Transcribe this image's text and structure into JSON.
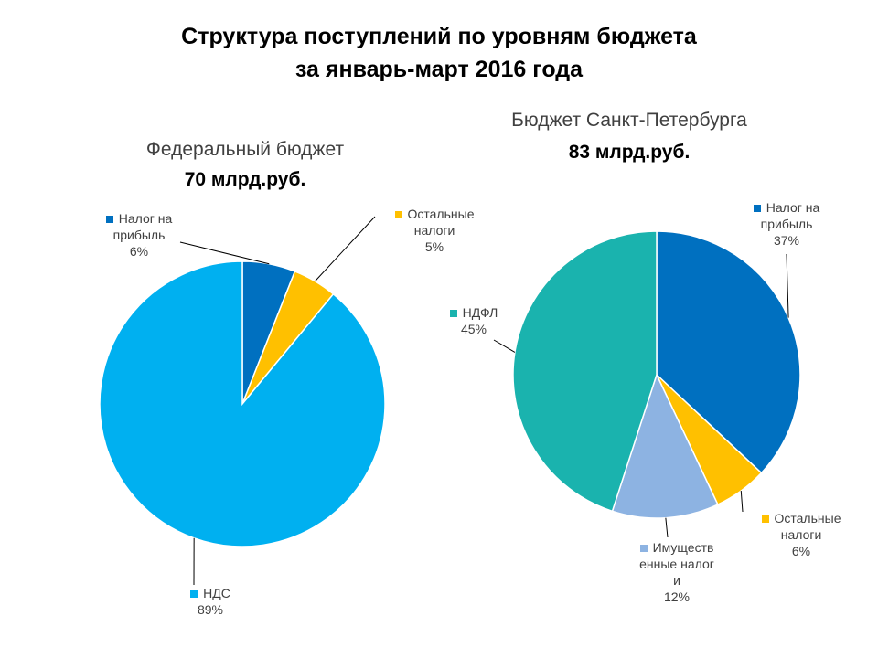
{
  "title": [
    "Структура поступлений по уровням бюджета",
    "за январь-март 2016 года"
  ],
  "chart_data": [
    {
      "type": "pie",
      "title": "Федеральный бюджет",
      "subtitle": "70 млрд.руб.",
      "categories": [
        "Налог на прибыль",
        "Остальные налоги",
        "НДС"
      ],
      "values": [
        6,
        5,
        89
      ],
      "value_labels": [
        "6%",
        "5%",
        "89%"
      ],
      "colors": [
        "#0070c0",
        "#ffc000",
        "#00b0f0"
      ]
    },
    {
      "type": "pie",
      "title": "Бюджет Санкт-Петербурга",
      "subtitle": "83 млрд.руб.",
      "categories": [
        "Налог на прибыль",
        "Остальные налоги",
        "Имущественные налоги",
        "НДФЛ"
      ],
      "values": [
        37,
        6,
        12,
        45
      ],
      "value_labels": [
        "37%",
        "6%",
        "12%",
        "45%"
      ],
      "colors": [
        "#0070c0",
        "#ffc000",
        "#8db3e2",
        "#1ab3ae"
      ]
    }
  ]
}
